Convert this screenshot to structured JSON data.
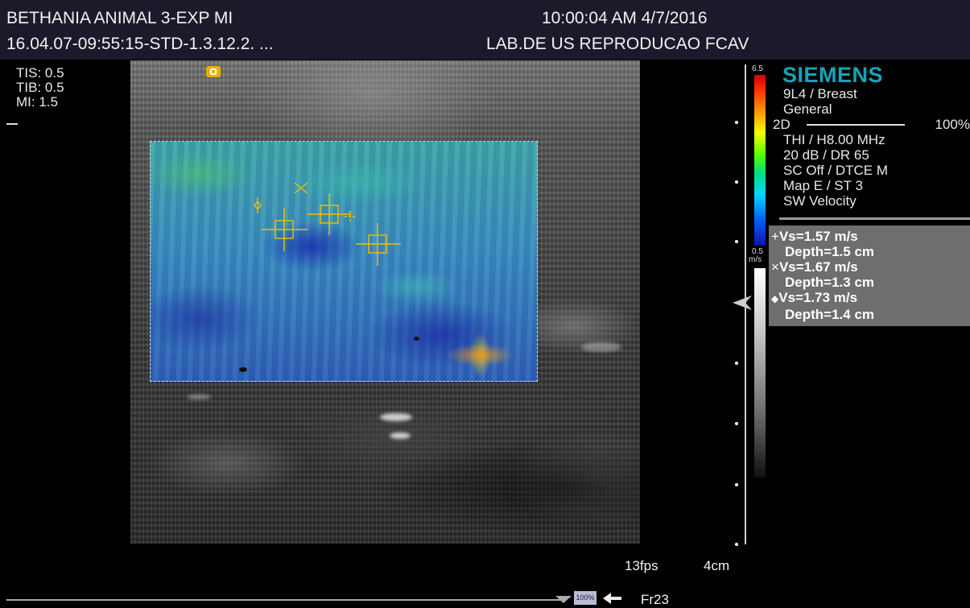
{
  "header": {
    "patient": "BETHANIA ANIMAL 3-EXP MI",
    "study_id": "16.04.07-09:55:15-STD-1.3.12.2. ...",
    "datetime": "10:00:04 AM 4/7/2016",
    "institution": "LAB.DE US REPRODUCAO FCAV"
  },
  "safety": [
    {
      "label": "TIS: 0.5"
    },
    {
      "label": "TIB: 0.5"
    },
    {
      "label": "MI:  1.5"
    }
  ],
  "colorbar": {
    "max": "6.5",
    "min": "0.5",
    "unit": "m/s"
  },
  "brand": "SIEMENS",
  "settings": {
    "transducer": "9L4 / Breast",
    "preset": "General",
    "mode": "2D",
    "power": "100%",
    "freq": "THI / H8.00 MHz",
    "gain": "20 dB / DR 65",
    "processing": "SC Off / DTCE M",
    "map": "Map E / ST 3",
    "velocity": "SW Velocity"
  },
  "measurements": [
    {
      "marker": "+",
      "vs": "Vs=1.57 m/s",
      "depth": "Depth=1.5 cm"
    },
    {
      "marker": "×",
      "vs": "Vs=1.67 m/s",
      "depth": "Depth=1.3 cm"
    },
    {
      "marker": "◆",
      "vs": "Vs=1.73 m/s",
      "depth": "Depth=1.4 cm"
    }
  ],
  "footer": {
    "fps": "13fps",
    "depth": "4cm",
    "zoom": "100%",
    "frame": "Fr23"
  },
  "colors": {
    "brand": "#11a6b8",
    "caliper": "#f0c000",
    "topbar": "#1a1a2a"
  }
}
